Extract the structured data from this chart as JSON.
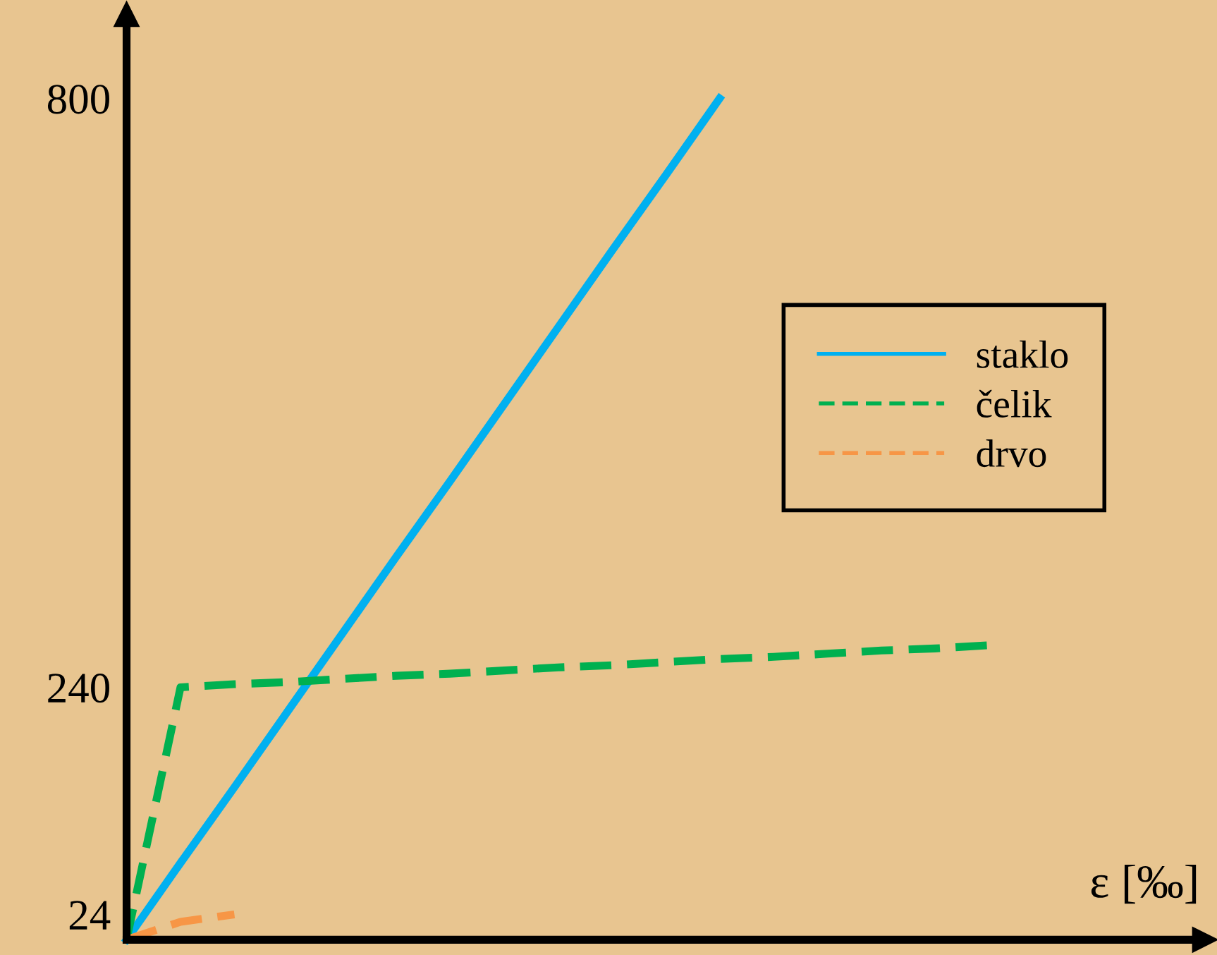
{
  "chart_data": {
    "type": "line",
    "xlabel": "ε [‰]",
    "ylim": [
      0,
      880
    ],
    "yticks": [
      24,
      240,
      800
    ],
    "tick_labels": "y",
    "grid": false,
    "legend": "right",
    "marker": "none",
    "categories": [
      null,
      null,
      null,
      null,
      null,
      null,
      null,
      null,
      null,
      null,
      null,
      null,
      null,
      null,
      null,
      null,
      null,
      null,
      null,
      null,
      null
    ],
    "series": [
      {
        "name": "staklo",
        "color": "#00b0f0",
        "line_style": "solid",
        "values": [
          0,
          73,
          145,
          218,
          291,
          364,
          436,
          509,
          582,
          655,
          727,
          800,
          null,
          null,
          null,
          null,
          null,
          null,
          null,
          null,
          null
        ]
      },
      {
        "name": "čelik",
        "color": "#00b050",
        "line_style": "dashed",
        "values": [
          0,
          240,
          243,
          245,
          248,
          251,
          253,
          256,
          259,
          261,
          264,
          267,
          269,
          272,
          275,
          277,
          280,
          null,
          null,
          null,
          null
        ]
      },
      {
        "name": "drvo",
        "color": "#f79646",
        "line_style": "dashed",
        "values": [
          0,
          17,
          24,
          null,
          null,
          null,
          null,
          null,
          null,
          null,
          null,
          null,
          null,
          null,
          null,
          null,
          null,
          null,
          null,
          null,
          null
        ]
      }
    ]
  }
}
